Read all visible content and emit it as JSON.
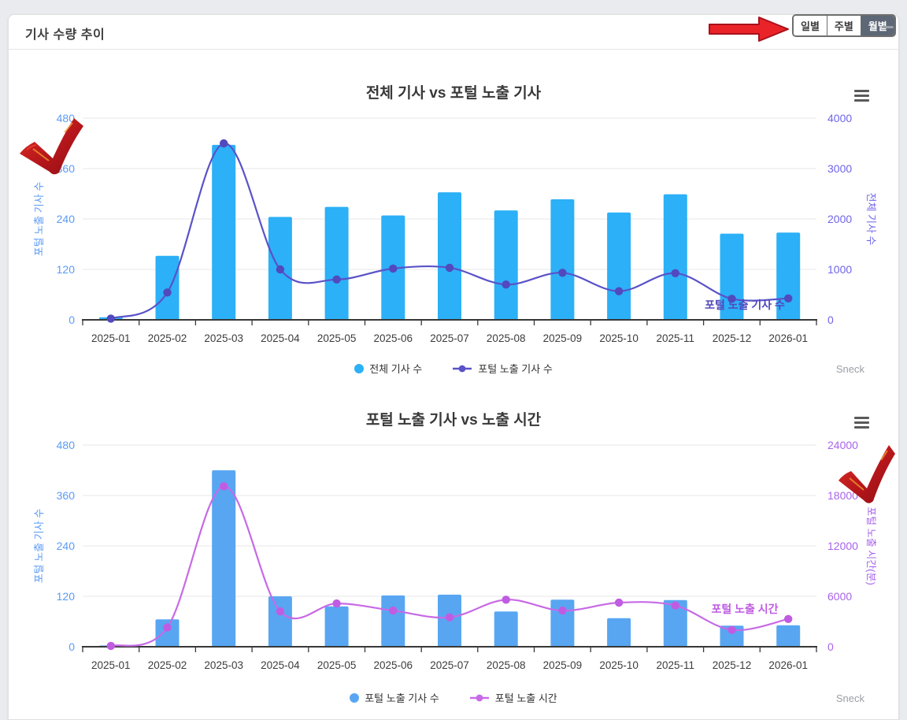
{
  "header": {
    "title": "기사 수량 추이",
    "period_buttons": [
      {
        "label": "일별",
        "active": false
      },
      {
        "label": "주별",
        "active": false
      },
      {
        "label": "월별",
        "active": true
      }
    ],
    "collapse_icon": "minus-icon",
    "arrow_annotation_color": "#ea2328"
  },
  "chart_data": [
    {
      "type": "bar+line",
      "title": "전체 기사 vs 포털 노출 기사",
      "categories": [
        "2025-01",
        "2025-02",
        "2025-03",
        "2025-04",
        "2025-05",
        "2025-06",
        "2025-07",
        "2025-08",
        "2025-09",
        "2025-10",
        "2025-11",
        "2025-12",
        "2026-01"
      ],
      "series": [
        {
          "name": "전체 기사 수",
          "type": "bar",
          "yaxis": "right",
          "color": "#2cb0f7",
          "values": [
            50,
            1270,
            3470,
            2040,
            2240,
            2070,
            2530,
            2170,
            2390,
            2130,
            2490,
            1710,
            1730
          ]
        },
        {
          "name": "포털 노출 기사 수",
          "type": "spline",
          "yaxis": "left",
          "color": "#5a52c8",
          "marker_color": "#5149bd",
          "values": [
            3,
            65,
            420,
            120,
            96,
            122,
            124,
            84,
            112,
            68,
            111,
            50,
            51
          ],
          "series_label": "포털 노출 기사 수"
        }
      ],
      "yaxis_left": {
        "title": "포털 노출 기사 수",
        "min": 0,
        "max": 480,
        "ticks": [
          0,
          120,
          240,
          360,
          480
        ],
        "color": "#5b9bf7"
      },
      "yaxis_right": {
        "title": "전체 기사 수",
        "min": 0,
        "max": 4000,
        "ticks": [
          0,
          1000,
          2000,
          3000,
          4000
        ],
        "color": "#6f65e8"
      },
      "legend": [
        {
          "label": "전체 기사 수",
          "symbol": "circle",
          "color": "#2cb0f7"
        },
        {
          "label": "포털 노출 기사 수",
          "symbol": "line-dot",
          "color": "#5a52c8"
        }
      ],
      "legend_position": "bottom-center",
      "grid": true,
      "menu_icon": "hamburger-menu-icon",
      "watermark": "Sneck"
    },
    {
      "type": "bar+line",
      "title": "포털 노출 기사 vs 노출 시간",
      "categories": [
        "2025-01",
        "2025-02",
        "2025-03",
        "2025-04",
        "2025-05",
        "2025-06",
        "2025-07",
        "2025-08",
        "2025-09",
        "2025-10",
        "2025-11",
        "2025-12",
        "2026-01"
      ],
      "series": [
        {
          "name": "포털 노출 기사 수",
          "type": "bar",
          "yaxis": "left",
          "color": "#58a6f2",
          "values": [
            3,
            65,
            420,
            120,
            96,
            122,
            124,
            84,
            112,
            68,
            111,
            50,
            51
          ]
        },
        {
          "name": "포털 노출 시간",
          "type": "spline",
          "yaxis": "right",
          "color": "#c76ae6",
          "marker_color": "#c05ce2",
          "values": [
            100,
            2300,
            19100,
            4200,
            5150,
            4300,
            3500,
            5600,
            4300,
            5250,
            4900,
            2000,
            3300
          ],
          "series_label": "포털 노출 시간"
        }
      ],
      "yaxis_left": {
        "title": "포털 노출 기사 수",
        "min": 0,
        "max": 480,
        "ticks": [
          0,
          120,
          240,
          360,
          480
        ],
        "color": "#5b9bf7"
      },
      "yaxis_right": {
        "title": "포털 노출 시간(분)",
        "min": 0,
        "max": 24000,
        "ticks": [
          0,
          6000,
          12000,
          18000,
          24000
        ],
        "color": "#a763ea"
      },
      "legend": [
        {
          "label": "포털 노출 기사 수",
          "symbol": "circle",
          "color": "#58a6f2"
        },
        {
          "label": "포털 노출 시간",
          "symbol": "line-dot",
          "color": "#c76ae6"
        }
      ],
      "legend_position": "bottom-center",
      "grid": true,
      "menu_icon": "hamburger-menu-icon",
      "watermark": "Sneck"
    }
  ]
}
